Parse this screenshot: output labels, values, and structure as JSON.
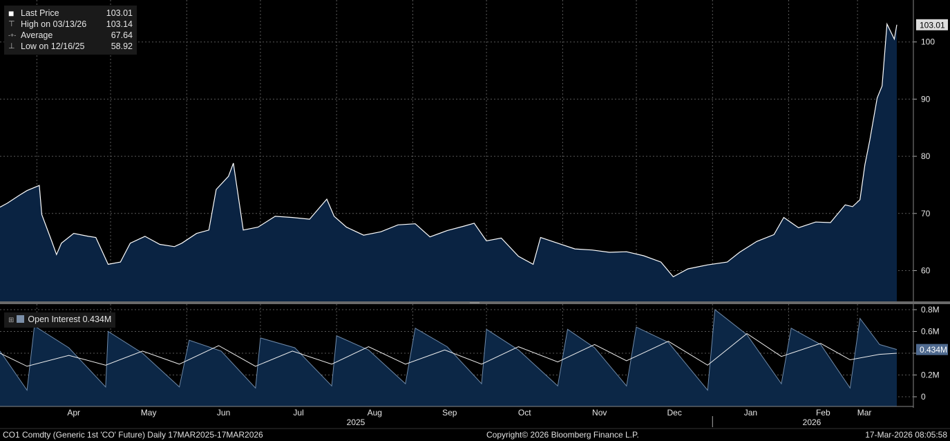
{
  "legend": {
    "items": [
      {
        "marker": "■",
        "label": "Last Price",
        "value": "103.01"
      },
      {
        "marker": "⊤",
        "label": "High on 03/13/26",
        "value": "103.14"
      },
      {
        "marker": "-+-",
        "label": "Average",
        "value": "67.64"
      },
      {
        "marker": "⊥",
        "label": "Low on 12/16/25",
        "value": "58.92"
      }
    ]
  },
  "oi_legend": {
    "label": "Open Interest 0.434M"
  },
  "footer": {
    "left": "CO1 Comdty (Generic 1st 'CO' Future) Daily 17MAR2025-17MAR2026",
    "center": "Copyright© 2026 Bloomberg Finance L.P.",
    "right": "17-Mar-2026 08:05:58"
  },
  "colors": {
    "background": "#000000",
    "area_fill": "#0a2342",
    "line": "#ffffff",
    "oi_fill": "#0c2746",
    "oi_stroke": "#6f8aa9",
    "tag_bg": "#dcdcdc",
    "oi_tag_bg": "#4f6a8f"
  },
  "chart_data": [
    {
      "type": "area",
      "series": [
        {
          "name": "Last Price",
          "x": [
            "2025-03-17",
            "2025-03-20",
            "2025-03-25",
            "2025-03-28",
            "2025-04-02",
            "2025-04-03",
            "2025-04-07",
            "2025-04-09",
            "2025-04-11",
            "2025-04-16",
            "2025-04-22",
            "2025-04-25",
            "2025-04-30",
            "2025-05-05",
            "2025-05-09",
            "2025-05-15",
            "2025-05-21",
            "2025-05-27",
            "2025-05-30",
            "2025-06-05",
            "2025-06-10",
            "2025-06-13",
            "2025-06-18",
            "2025-06-20",
            "2025-06-24",
            "2025-06-30",
            "2025-07-07",
            "2025-07-14",
            "2025-07-21",
            "2025-07-28",
            "2025-07-31",
            "2025-08-05",
            "2025-08-12",
            "2025-08-19",
            "2025-08-26",
            "2025-09-02",
            "2025-09-08",
            "2025-09-15",
            "2025-09-22",
            "2025-09-26",
            "2025-10-01",
            "2025-10-07",
            "2025-10-14",
            "2025-10-20",
            "2025-10-23",
            "2025-10-30",
            "2025-11-06",
            "2025-11-13",
            "2025-11-20",
            "2025-11-27",
            "2025-12-04",
            "2025-12-11",
            "2025-12-16",
            "2025-12-22",
            "2025-12-30",
            "2026-01-07",
            "2026-01-12",
            "2026-01-19",
            "2026-01-26",
            "2026-01-30",
            "2026-02-05",
            "2026-02-12",
            "2026-02-18",
            "2026-02-24",
            "2026-02-27",
            "2026-03-02",
            "2026-03-04",
            "2026-03-06",
            "2026-03-09",
            "2026-03-11",
            "2026-03-13",
            "2026-03-16",
            "2026-03-17"
          ],
          "values": [
            71.1,
            71.8,
            73.2,
            74.0,
            74.9,
            69.8,
            65.2,
            62.8,
            64.8,
            66.5,
            66.0,
            65.8,
            61.1,
            61.5,
            64.8,
            66.0,
            64.6,
            64.2,
            64.8,
            66.5,
            67.1,
            74.2,
            76.5,
            78.8,
            67.1,
            67.6,
            69.5,
            69.3,
            69.0,
            72.5,
            69.5,
            67.6,
            66.2,
            66.8,
            68.0,
            68.2,
            65.9,
            67.0,
            67.8,
            68.3,
            65.2,
            65.7,
            62.5,
            61.1,
            65.8,
            64.8,
            63.8,
            63.6,
            63.2,
            63.3,
            62.6,
            61.5,
            58.92,
            60.3,
            61.0,
            61.5,
            63.2,
            65.1,
            66.3,
            69.3,
            67.5,
            68.5,
            68.4,
            71.5,
            71.2,
            72.4,
            78.5,
            82.8,
            90.2,
            92.3,
            103.14,
            100.5,
            103.01
          ]
        }
      ],
      "ylim": [
        55,
        105
      ],
      "y_ticks": [
        60,
        70,
        80,
        90,
        100
      ],
      "last_value_label": "103.01",
      "x_tick_labels": [
        "Apr",
        "May",
        "Jun",
        "Jul",
        "Aug",
        "Sep",
        "Oct",
        "Nov",
        "Dec",
        "Jan",
        "Feb",
        "Mar"
      ],
      "year_labels": [
        "2025",
        "2026"
      ],
      "grid": true
    },
    {
      "type": "area",
      "series": [
        {
          "name": "Open Interest",
          "x": [
            "2025-03-17",
            "2025-03-28",
            "2025-03-31",
            "2025-04-14",
            "2025-04-29",
            "2025-04-30",
            "2025-05-14",
            "2025-05-29",
            "2025-06-02",
            "2025-06-15",
            "2025-06-29",
            "2025-07-01",
            "2025-07-15",
            "2025-07-30",
            "2025-08-01",
            "2025-08-14",
            "2025-08-29",
            "2025-09-02",
            "2025-09-15",
            "2025-09-29",
            "2025-10-01",
            "2025-10-14",
            "2025-10-30",
            "2025-11-03",
            "2025-11-14",
            "2025-11-27",
            "2025-12-01",
            "2025-12-14",
            "2025-12-30",
            "2026-01-02",
            "2026-01-15",
            "2026-01-29",
            "2026-02-02",
            "2026-02-14",
            "2026-02-26",
            "2026-03-02",
            "2026-03-10",
            "2026-03-17"
          ],
          "values": [
            0.42,
            0.06,
            0.65,
            0.45,
            0.09,
            0.6,
            0.4,
            0.09,
            0.52,
            0.42,
            0.08,
            0.54,
            0.45,
            0.1,
            0.56,
            0.43,
            0.12,
            0.63,
            0.46,
            0.12,
            0.62,
            0.43,
            0.1,
            0.62,
            0.45,
            0.1,
            0.64,
            0.5,
            0.06,
            0.8,
            0.57,
            0.12,
            0.63,
            0.48,
            0.08,
            0.72,
            0.48,
            0.434
          ]
        },
        {
          "name": "",
          "x": [
            "2025-03-17",
            "2025-03-28",
            "2025-04-14",
            "2025-04-29",
            "2025-05-14",
            "2025-05-29",
            "2025-06-14",
            "2025-06-29",
            "2025-07-14",
            "2025-07-30",
            "2025-08-14",
            "2025-08-29",
            "2025-09-14",
            "2025-09-29",
            "2025-10-14",
            "2025-10-30",
            "2025-11-14",
            "2025-11-27",
            "2025-12-14",
            "2025-12-30",
            "2026-01-15",
            "2026-01-29",
            "2026-02-14",
            "2026-02-26",
            "2026-03-10",
            "2026-03-17"
          ],
          "values": [
            0.4,
            0.28,
            0.38,
            0.29,
            0.42,
            0.3,
            0.47,
            0.28,
            0.42,
            0.3,
            0.46,
            0.3,
            0.43,
            0.3,
            0.46,
            0.32,
            0.48,
            0.33,
            0.51,
            0.29,
            0.58,
            0.37,
            0.49,
            0.34,
            0.39,
            0.4
          ]
        }
      ],
      "ylim": [
        -0.05,
        0.85
      ],
      "y_tick_values": [
        0,
        0.2,
        0.4,
        0.6,
        0.8
      ],
      "y_ticks": [
        "0",
        "0.2M",
        "",
        "0.6M",
        "0.8M"
      ],
      "last_value_label": "0.434M",
      "grid": true
    }
  ]
}
